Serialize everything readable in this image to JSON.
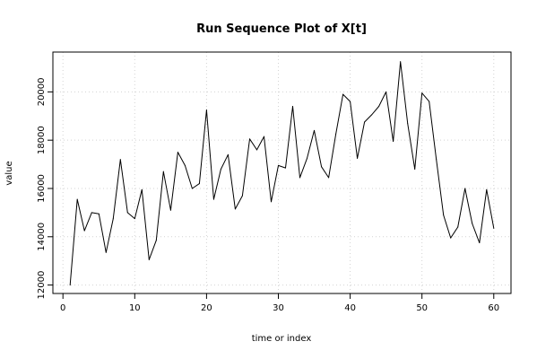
{
  "chart_data": {
    "type": "line",
    "title": "Run Sequence Plot of X[t]",
    "xlabel": "time or index",
    "ylabel": "value",
    "xlim": [
      -1.4,
      62.4
    ],
    "ylim": [
      11650,
      21650
    ],
    "xticks": [
      0,
      10,
      20,
      30,
      40,
      50,
      60
    ],
    "yticks": [
      12000,
      14000,
      16000,
      18000,
      20000
    ],
    "grid": true,
    "colors": {
      "line": "#000000",
      "grid": "#d3d3d3",
      "axis": "#000000"
    },
    "series": [
      {
        "x": [
          1,
          2,
          3,
          4,
          5,
          6,
          7,
          8,
          9,
          10,
          11,
          12,
          13,
          14,
          15,
          16,
          17,
          18,
          19,
          20,
          21,
          22,
          23,
          24,
          25,
          26,
          27,
          28,
          29,
          30,
          31,
          32,
          33,
          34,
          35,
          36,
          37,
          38,
          39,
          40,
          41,
          42,
          43,
          44,
          45,
          46,
          47,
          48,
          49,
          50,
          51,
          52,
          53,
          54,
          55,
          56,
          57,
          58,
          59,
          60
        ],
        "values": [
          12000,
          15550,
          14250,
          15000,
          14950,
          13350,
          14750,
          17200,
          15000,
          14750,
          15950,
          13050,
          13850,
          16700,
          15100,
          17500,
          16950,
          16000,
          16200,
          19250,
          15550,
          16800,
          17400,
          15150,
          15700,
          18050,
          17600,
          18150,
          15450,
          16950,
          16850,
          19400,
          16450,
          17250,
          18400,
          16900,
          16450,
          18250,
          19900,
          19600,
          17250,
          18750,
          19050,
          19400,
          20000,
          17950,
          21250,
          18700,
          16800,
          19950,
          19600,
          17200,
          14900,
          13950,
          14400,
          16000,
          14550,
          13750,
          15950,
          14350
        ]
      }
    ]
  }
}
